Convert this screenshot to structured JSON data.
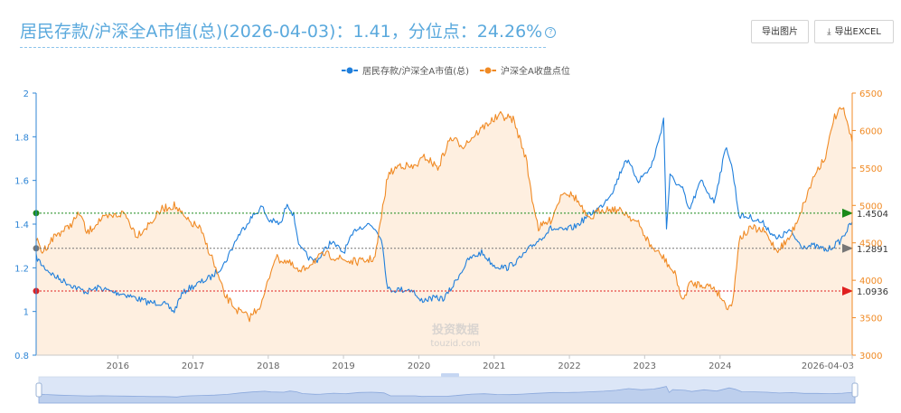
{
  "header": {
    "title": "居民存款/沪深全A市值(总)(2026-04-03)：1.41，分位点：24.26%",
    "help_icon": "question-circle-icon"
  },
  "toolbar": {
    "export_image_label": "导出图片",
    "export_excel_label": "导出EXCEL",
    "export_excel_icon": "download-icon"
  },
  "chart_data": {
    "type": "line",
    "watermark_cn": "投资数据",
    "watermark_en": "touzid.com",
    "x_tick_labels": [
      "2016",
      "2017",
      "2018",
      "2019",
      "2020",
      "2021",
      "2022",
      "2023",
      "2024",
      "2026-04-03"
    ],
    "x_range": [
      "2015-06-01",
      "2026-04-03"
    ],
    "y_left": {
      "ticks": [
        "0.8",
        "1",
        "1.2",
        "1.4",
        "1.6",
        "1.8",
        "2"
      ],
      "range": [
        0.8,
        2.0
      ]
    },
    "y_right": {
      "ticks": [
        "3000",
        "3500",
        "4000",
        "4500",
        "5000",
        "5500",
        "6000",
        "6500"
      ],
      "range": [
        3000,
        6500
      ]
    },
    "grid": false,
    "legend": {
      "position": "top-center",
      "colors": [
        "#1f7fdc",
        "#f08a24"
      ]
    },
    "series": [
      {
        "name": "居民存款/沪深全A市值(总)",
        "axis": "left",
        "color": "#1f7fdc",
        "points": [
          [
            "2015-06-01",
            1.25
          ],
          [
            "2015-07-01",
            1.21
          ],
          [
            "2015-09-01",
            1.16
          ],
          [
            "2015-11-01",
            1.13
          ],
          [
            "2016-01-01",
            1.1
          ],
          [
            "2016-02-01",
            1.09
          ],
          [
            "2016-04-01",
            1.11
          ],
          [
            "2016-06-01",
            1.09
          ],
          [
            "2016-08-01",
            1.08
          ],
          [
            "2016-10-01",
            1.06
          ],
          [
            "2016-12-01",
            1.04
          ],
          [
            "2017-02-01",
            1.04
          ],
          [
            "2017-04-01",
            1.0
          ],
          [
            "2017-05-01",
            1.07
          ],
          [
            "2017-06-01",
            1.1
          ],
          [
            "2017-08-01",
            1.13
          ],
          [
            "2017-10-01",
            1.16
          ],
          [
            "2017-12-01",
            1.22
          ],
          [
            "2018-02-01",
            1.34
          ],
          [
            "2018-04-01",
            1.42
          ],
          [
            "2018-06-01",
            1.48
          ],
          [
            "2018-07-01",
            1.42
          ],
          [
            "2018-09-01",
            1.4
          ],
          [
            "2018-10-01",
            1.5
          ],
          [
            "2018-11-01",
            1.44
          ],
          [
            "2018-12-01",
            1.29
          ],
          [
            "2019-02-01",
            1.23
          ],
          [
            "2019-03-01",
            1.24
          ],
          [
            "2019-05-01",
            1.32
          ],
          [
            "2019-07-01",
            1.27
          ],
          [
            "2019-09-01",
            1.38
          ],
          [
            "2019-11-01",
            1.4
          ],
          [
            "2019-12-01",
            1.38
          ],
          [
            "2020-01-01",
            1.34
          ],
          [
            "2020-02-01",
            1.1
          ],
          [
            "2020-04-01",
            1.1
          ],
          [
            "2020-06-01",
            1.1
          ],
          [
            "2020-07-01",
            1.05
          ],
          [
            "2020-09-01",
            1.06
          ],
          [
            "2020-11-01",
            1.06
          ],
          [
            "2020-12-15",
            1.12
          ],
          [
            "2021-01-01",
            1.15
          ],
          [
            "2021-03-01",
            1.24
          ],
          [
            "2021-05-01",
            1.27
          ],
          [
            "2021-07-01",
            1.21
          ],
          [
            "2021-09-01",
            1.2
          ],
          [
            "2021-11-01",
            1.24
          ],
          [
            "2022-01-01",
            1.3
          ],
          [
            "2022-03-01",
            1.35
          ],
          [
            "2022-04-01",
            1.38
          ],
          [
            "2022-06-01",
            1.37
          ],
          [
            "2022-08-01",
            1.39
          ],
          [
            "2022-10-01",
            1.44
          ],
          [
            "2022-12-01",
            1.48
          ],
          [
            "2023-02-01",
            1.56
          ],
          [
            "2023-04-01",
            1.7
          ],
          [
            "2023-06-01",
            1.6
          ],
          [
            "2023-08-01",
            1.66
          ],
          [
            "2023-09-01",
            1.76
          ],
          [
            "2023-10-01",
            1.88
          ],
          [
            "2023-10-15",
            1.38
          ],
          [
            "2023-11-01",
            1.62
          ],
          [
            "2024-01-01",
            1.56
          ],
          [
            "2024-02-01",
            1.46
          ],
          [
            "2024-04-01",
            1.6
          ],
          [
            "2024-06-01",
            1.5
          ],
          [
            "2024-08-01",
            1.76
          ],
          [
            "2024-09-01",
            1.64
          ],
          [
            "2024-10-01",
            1.44
          ],
          [
            "2024-12-01",
            1.43
          ],
          [
            "2025-02-01",
            1.4
          ],
          [
            "2025-04-01",
            1.33
          ],
          [
            "2025-06-01",
            1.37
          ],
          [
            "2025-08-01",
            1.3
          ],
          [
            "2025-10-01",
            1.3
          ],
          [
            "2025-12-01",
            1.28
          ],
          [
            "2026-02-01",
            1.32
          ],
          [
            "2026-04-03",
            1.41
          ]
        ]
      },
      {
        "name": "沪深全A收盘点位",
        "axis": "right",
        "color": "#f08a24",
        "points": [
          [
            "2015-06-01",
            4550
          ],
          [
            "2015-07-01",
            4380
          ],
          [
            "2015-09-01",
            4600
          ],
          [
            "2015-11-01",
            4700
          ],
          [
            "2016-01-01",
            4900
          ],
          [
            "2016-02-01",
            4620
          ],
          [
            "2016-04-01",
            4800
          ],
          [
            "2016-06-01",
            4850
          ],
          [
            "2016-08-01",
            4900
          ],
          [
            "2016-10-01",
            4600
          ],
          [
            "2016-12-01",
            4750
          ],
          [
            "2017-02-01",
            4950
          ],
          [
            "2017-04-01",
            5000
          ],
          [
            "2017-06-01",
            4800
          ],
          [
            "2017-08-01",
            4700
          ],
          [
            "2017-10-01",
            4300
          ],
          [
            "2017-12-01",
            3800
          ],
          [
            "2018-02-01",
            3600
          ],
          [
            "2018-04-01",
            3500
          ],
          [
            "2018-06-01",
            3700
          ],
          [
            "2018-08-01",
            4300
          ],
          [
            "2018-10-01",
            4250
          ],
          [
            "2018-12-01",
            4100
          ],
          [
            "2019-02-01",
            4250
          ],
          [
            "2019-04-01",
            4350
          ],
          [
            "2019-06-01",
            4300
          ],
          [
            "2019-08-01",
            4250
          ],
          [
            "2019-10-01",
            4250
          ],
          [
            "2019-12-01",
            4300
          ],
          [
            "2020-02-01",
            5400
          ],
          [
            "2020-04-01",
            5550
          ],
          [
            "2020-06-01",
            5500
          ],
          [
            "2020-08-01",
            5650
          ],
          [
            "2020-10-01",
            5500
          ],
          [
            "2020-12-01",
            5900
          ],
          [
            "2021-02-01",
            5800
          ],
          [
            "2021-04-01",
            5950
          ],
          [
            "2021-06-01",
            6100
          ],
          [
            "2021-08-01",
            6200
          ],
          [
            "2021-10-01",
            6150
          ],
          [
            "2021-12-01",
            5650
          ],
          [
            "2022-01-01",
            5100
          ],
          [
            "2022-02-01",
            4700
          ],
          [
            "2022-04-01",
            4800
          ],
          [
            "2022-06-01",
            5200
          ],
          [
            "2022-08-01",
            5100
          ],
          [
            "2022-10-01",
            4800
          ],
          [
            "2022-12-01",
            4950
          ],
          [
            "2023-02-01",
            4950
          ],
          [
            "2023-04-01",
            4900
          ],
          [
            "2023-06-01",
            4750
          ],
          [
            "2023-08-01",
            4450
          ],
          [
            "2023-10-01",
            4300
          ],
          [
            "2023-12-01",
            4050
          ],
          [
            "2024-01-01",
            3700
          ],
          [
            "2024-02-01",
            3950
          ],
          [
            "2024-04-01",
            3950
          ],
          [
            "2024-06-01",
            3900
          ],
          [
            "2024-07-01",
            3800
          ],
          [
            "2024-08-01",
            3650
          ],
          [
            "2024-09-01",
            3700
          ],
          [
            "2024-10-01",
            4550
          ],
          [
            "2024-12-01",
            4700
          ],
          [
            "2025-02-01",
            4650
          ],
          [
            "2025-04-01",
            4400
          ],
          [
            "2025-06-01",
            4550
          ],
          [
            "2025-08-01",
            4950
          ],
          [
            "2025-10-01",
            5400
          ],
          [
            "2025-12-01",
            5700
          ],
          [
            "2026-01-01",
            6150
          ],
          [
            "2026-02-15",
            6300
          ],
          [
            "2026-03-15",
            6050
          ],
          [
            "2026-04-03",
            5850
          ]
        ]
      }
    ],
    "reference_lines": [
      {
        "value": 1.4504,
        "label": "1.4504",
        "color": "#1a8a1a"
      },
      {
        "value": 1.2891,
        "label": "1.2891",
        "color": "#777777"
      },
      {
        "value": 1.0936,
        "label": "1.0936",
        "color": "#e02020"
      }
    ]
  }
}
